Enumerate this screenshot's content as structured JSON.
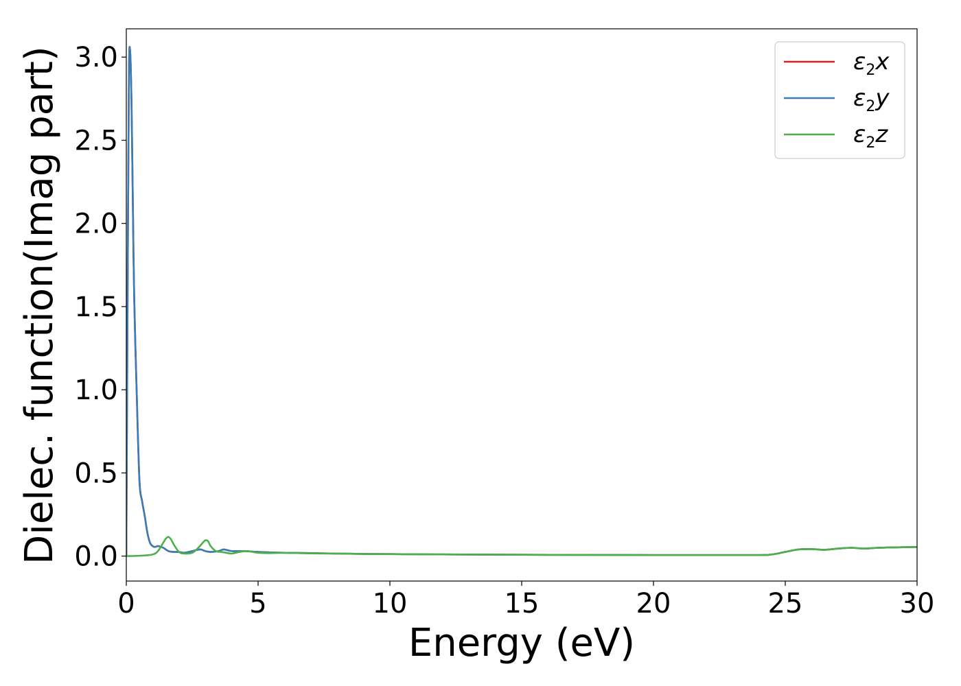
{
  "chart_data": {
    "type": "line",
    "title": "",
    "xlabel": "Energy (eV)",
    "ylabel": "Dielec. function(Imag part)",
    "xlim": [
      0,
      30
    ],
    "ylim": [
      -0.15,
      3.17
    ],
    "xticks": [
      0,
      5,
      10,
      15,
      20,
      25,
      30
    ],
    "yticks": [
      0.0,
      0.5,
      1.0,
      1.5,
      2.0,
      2.5,
      3.0
    ],
    "xtick_labels": [
      "0",
      "5",
      "10",
      "15",
      "20",
      "25",
      "30"
    ],
    "ytick_labels": [
      "0.0",
      "0.5",
      "1.0",
      "1.5",
      "2.0",
      "2.5",
      "3.0"
    ],
    "grid": false,
    "legend_position": "top-right",
    "series": [
      {
        "name": "x",
        "legend_symbol": "ε",
        "legend_sub": "2",
        "color": "#e41a1c",
        "x": [
          0,
          0.05,
          0.1,
          0.15,
          0.2,
          0.25,
          0.3,
          0.4,
          0.5,
          0.6,
          0.7,
          0.8,
          0.9,
          1.0,
          1.1,
          1.2,
          1.4,
          1.6,
          1.8,
          2.0,
          2.2,
          2.5,
          2.8,
          3.0,
          3.2,
          3.5,
          3.7,
          4.0,
          4.5,
          5.0,
          6.0,
          7.0,
          8.0,
          9.0,
          10.0,
          12.0,
          15.0,
          18.0,
          20.0,
          22.0,
          24.0,
          24.5,
          25.0,
          25.5,
          26.0,
          26.5,
          27.0,
          27.5,
          28.0,
          28.5,
          29.0,
          30.0
        ],
        "y": [
          0.0,
          1.6,
          2.9,
          3.02,
          2.7,
          2.1,
          1.55,
          0.95,
          0.45,
          0.33,
          0.24,
          0.14,
          0.08,
          0.06,
          0.055,
          0.06,
          0.05,
          0.03,
          0.025,
          0.025,
          0.02,
          0.03,
          0.04,
          0.03,
          0.025,
          0.03,
          0.04,
          0.03,
          0.03,
          0.025,
          0.02,
          0.018,
          0.015,
          0.013,
          0.012,
          0.01,
          0.008,
          0.007,
          0.006,
          0.006,
          0.006,
          0.01,
          0.025,
          0.04,
          0.042,
          0.038,
          0.045,
          0.05,
          0.045,
          0.05,
          0.052,
          0.055
        ]
      },
      {
        "name": "y",
        "legend_symbol": "ε",
        "legend_sub": "2",
        "color": "#377eb8",
        "x": [
          0,
          0.05,
          0.1,
          0.15,
          0.2,
          0.25,
          0.3,
          0.4,
          0.5,
          0.6,
          0.7,
          0.8,
          0.9,
          1.0,
          1.1,
          1.2,
          1.4,
          1.6,
          1.8,
          2.0,
          2.2,
          2.5,
          2.8,
          3.0,
          3.2,
          3.5,
          3.7,
          4.0,
          4.5,
          5.0,
          6.0,
          7.0,
          8.0,
          9.0,
          10.0,
          12.0,
          15.0,
          18.0,
          20.0,
          22.0,
          24.0,
          24.5,
          25.0,
          25.5,
          26.0,
          26.5,
          27.0,
          27.5,
          28.0,
          28.5,
          29.0,
          30.0
        ],
        "y": [
          0.0,
          1.6,
          2.9,
          3.02,
          2.7,
          2.1,
          1.55,
          0.95,
          0.45,
          0.33,
          0.24,
          0.14,
          0.08,
          0.06,
          0.055,
          0.06,
          0.05,
          0.03,
          0.025,
          0.025,
          0.02,
          0.03,
          0.04,
          0.03,
          0.025,
          0.03,
          0.04,
          0.03,
          0.03,
          0.025,
          0.02,
          0.018,
          0.015,
          0.013,
          0.012,
          0.01,
          0.008,
          0.007,
          0.006,
          0.006,
          0.006,
          0.01,
          0.025,
          0.04,
          0.042,
          0.038,
          0.045,
          0.05,
          0.045,
          0.05,
          0.052,
          0.055
        ]
      },
      {
        "name": "z",
        "legend_symbol": "ε",
        "legend_sub": "2",
        "color": "#4daf4a",
        "x": [
          0,
          0.5,
          1.0,
          1.2,
          1.4,
          1.5,
          1.6,
          1.7,
          1.8,
          2.0,
          2.2,
          2.5,
          2.7,
          2.9,
          3.0,
          3.1,
          3.2,
          3.4,
          3.6,
          3.8,
          4.0,
          4.3,
          4.6,
          5.0,
          5.5,
          6.0,
          7.0,
          8.0,
          9.0,
          10.0,
          12.0,
          15.0,
          18.0,
          20.0,
          22.0,
          24.0,
          24.5,
          25.0,
          25.5,
          26.0,
          26.5,
          27.0,
          27.5,
          28.0,
          28.5,
          29.0,
          30.0
        ],
        "y": [
          0.0,
          0.002,
          0.01,
          0.03,
          0.08,
          0.105,
          0.115,
          0.1,
          0.07,
          0.025,
          0.015,
          0.02,
          0.045,
          0.08,
          0.095,
          0.09,
          0.06,
          0.03,
          0.025,
          0.02,
          0.015,
          0.025,
          0.03,
          0.02,
          0.018,
          0.02,
          0.016,
          0.015,
          0.013,
          0.012,
          0.01,
          0.008,
          0.007,
          0.006,
          0.006,
          0.006,
          0.01,
          0.025,
          0.04,
          0.042,
          0.038,
          0.045,
          0.05,
          0.045,
          0.05,
          0.052,
          0.055
        ]
      }
    ]
  }
}
